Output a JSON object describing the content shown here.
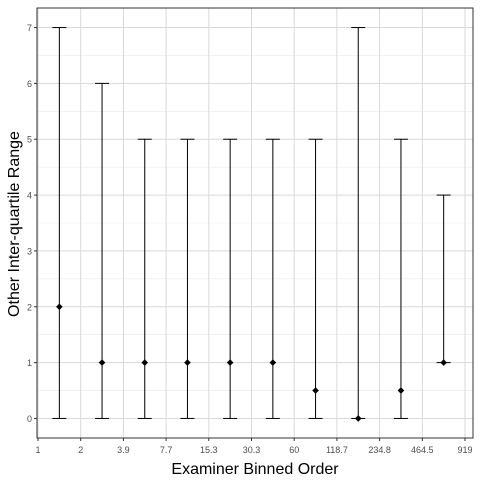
{
  "chart_data": {
    "type": "errorbar",
    "xlabel": "Examiner Binned Order",
    "ylabel": "Other Inter-quartile Range",
    "x_ticks": [
      "1",
      "2",
      "3.9",
      "7.7",
      "15.3",
      "30.3",
      "60",
      "118.7",
      "234.8",
      "464.5",
      "919"
    ],
    "y_ticks": [
      0,
      1,
      2,
      3,
      4,
      5,
      6,
      7
    ],
    "ylim": [
      -0.35,
      7.35
    ],
    "grid": true,
    "points": [
      {
        "bin": 1,
        "low": 0,
        "mid": 2,
        "high": 7
      },
      {
        "bin": 2,
        "low": 0,
        "mid": 1,
        "high": 6
      },
      {
        "bin": 3,
        "low": 0,
        "mid": 1,
        "high": 5
      },
      {
        "bin": 4,
        "low": 0,
        "mid": 1,
        "high": 5
      },
      {
        "bin": 5,
        "low": 0,
        "mid": 1,
        "high": 5
      },
      {
        "bin": 6,
        "low": 0,
        "mid": 1,
        "high": 5
      },
      {
        "bin": 7,
        "low": 0,
        "mid": 0.5,
        "high": 5
      },
      {
        "bin": 8,
        "low": 0,
        "mid": 0,
        "high": 7
      },
      {
        "bin": 9,
        "low": 0,
        "mid": 0.5,
        "high": 5
      },
      {
        "bin": 10,
        "low": 1,
        "mid": 1,
        "high": 4
      }
    ]
  }
}
